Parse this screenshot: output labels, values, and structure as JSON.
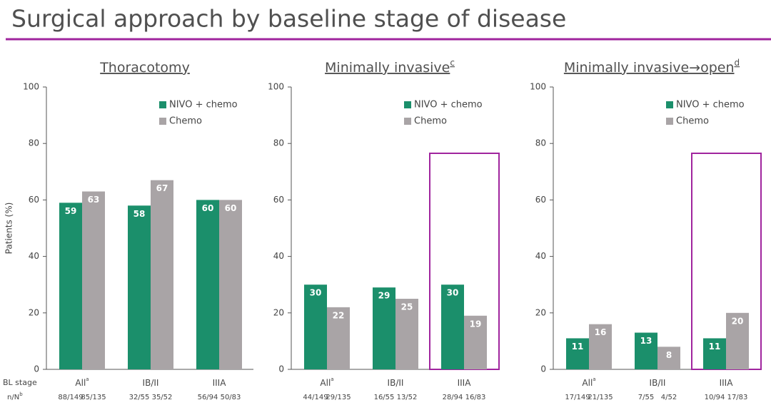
{
  "title": "Surgical approach by baseline stage of disease",
  "row_labels": {
    "stage": "BL stage",
    "counts": "n/N",
    "counts_note": "b"
  },
  "chart_data": [
    {
      "type": "bar",
      "title": "Thoracotomy",
      "y_label": "Patients (%)",
      "categories": [
        "All",
        "IB/II",
        "IIIA"
      ],
      "category_notes": [
        "a",
        null,
        null
      ],
      "series": [
        {
          "name": "NIVO + chemo",
          "color": "#1b8f6b",
          "values": [
            59,
            58,
            60
          ],
          "counts": [
            "88/149",
            "32/55",
            "56/94"
          ]
        },
        {
          "name": "Chemo",
          "color": "#a9a4a6",
          "values": [
            63,
            67,
            60
          ],
          "counts": [
            "85/135",
            "35/52",
            "50/83"
          ]
        }
      ],
      "ylim": [
        0,
        100
      ],
      "yticks": [
        0,
        20,
        40,
        60,
        80,
        100
      ],
      "grid": false,
      "legend": "top-right"
    },
    {
      "type": "bar",
      "title": "Minimally invasive",
      "title_note": "c",
      "categories": [
        "All",
        "IB/II",
        "IIIA"
      ],
      "category_notes": [
        "a",
        null,
        null
      ],
      "series": [
        {
          "name": "NIVO + chemo",
          "color": "#1b8f6b",
          "values": [
            30,
            29,
            30
          ],
          "counts": [
            "44/149",
            "16/55",
            "28/94"
          ]
        },
        {
          "name": "Chemo",
          "color": "#a9a4a6",
          "values": [
            22,
            25,
            19
          ],
          "counts": [
            "29/135",
            "13/52",
            "16/83"
          ]
        }
      ],
      "ylim": [
        0,
        100
      ],
      "yticks": [
        0,
        20,
        40,
        60,
        80,
        100
      ],
      "grid": false,
      "legend": "top-right",
      "highlight_category": 2
    },
    {
      "type": "bar",
      "title": "Minimally invasive→open",
      "title_note": "d",
      "categories": [
        "All",
        "IB/II",
        "IIIA"
      ],
      "category_notes": [
        "a",
        null,
        null
      ],
      "series": [
        {
          "name": "NIVO + chemo",
          "color": "#1b8f6b",
          "values": [
            11,
            13,
            11
          ],
          "counts": [
            "17/149",
            "7/55",
            "10/94"
          ]
        },
        {
          "name": "Chemo",
          "color": "#a9a4a6",
          "values": [
            16,
            8,
            20
          ],
          "counts": [
            "21/135",
            "4/52",
            "17/83"
          ]
        }
      ],
      "ylim": [
        0,
        100
      ],
      "yticks": [
        0,
        20,
        40,
        60,
        80,
        100
      ],
      "grid": false,
      "legend": "top-right",
      "highlight_category": 2
    }
  ]
}
